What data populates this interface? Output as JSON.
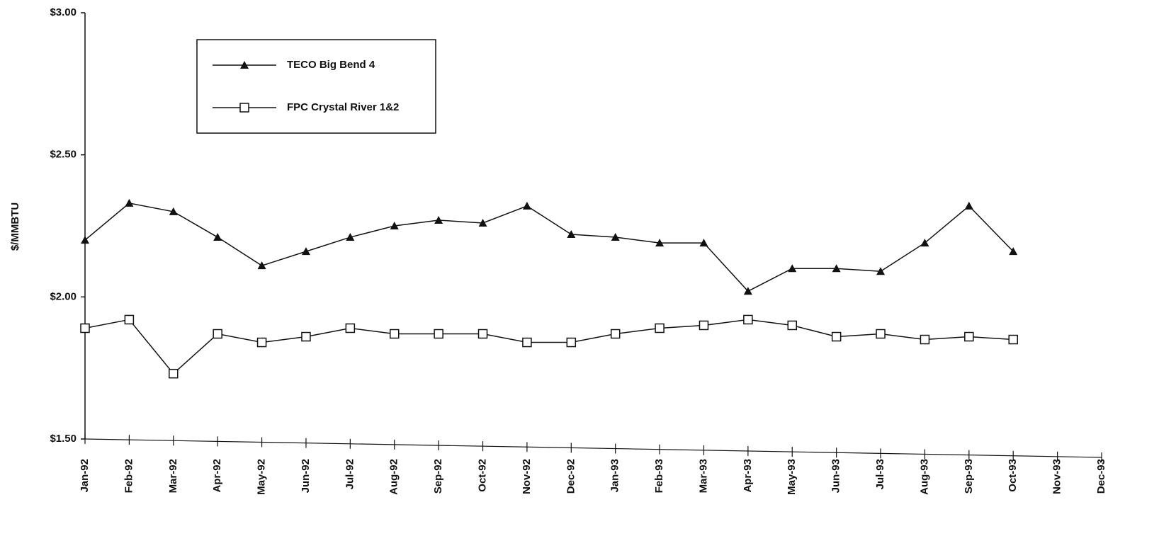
{
  "chart_data": {
    "type": "line",
    "y_label": "$/MMBTU",
    "categories": [
      "Jan-92",
      "Feb-92",
      "Mar-92",
      "Apr-92",
      "May-92",
      "Jun-92",
      "Jul-92",
      "Aug-92",
      "Sep-92",
      "Oct-92",
      "Nov-92",
      "Dec-92",
      "Jan-93",
      "Feb-93",
      "Mar-93",
      "Apr-93",
      "May-93",
      "Jun-93",
      "Jul-93",
      "Aug-93",
      "Sep-93",
      "Oct-93",
      "Nov-93",
      "Dec-93"
    ],
    "series": [
      {
        "name": "TECO  Big Bend 4",
        "color": "#111111",
        "marker": "triangle",
        "values": [
          2.2,
          2.33,
          2.3,
          2.21,
          2.11,
          2.16,
          2.21,
          2.25,
          2.27,
          2.26,
          2.32,
          2.22,
          2.21,
          2.19,
          2.19,
          2.02,
          2.1,
          2.1,
          2.09,
          2.19,
          2.32,
          2.16,
          null,
          null
        ]
      },
      {
        "name": "FPC Crystal River 1&2",
        "color": "#111111",
        "marker": "square",
        "values": [
          1.89,
          1.92,
          1.73,
          1.87,
          1.84,
          1.86,
          1.89,
          1.87,
          1.87,
          1.87,
          1.84,
          1.84,
          1.87,
          1.89,
          1.9,
          1.92,
          1.9,
          1.86,
          1.87,
          1.85,
          1.86,
          1.85,
          null,
          null
        ]
      }
    ],
    "ylim": [
      1.5,
      3.0
    ],
    "yticks": [
      {
        "value": 1.5,
        "label": "$1.50"
      },
      {
        "value": 2.0,
        "label": "$2.00"
      },
      {
        "value": 2.5,
        "label": "$2.50"
      },
      {
        "value": 3.0,
        "label": "$3.00"
      }
    ],
    "grid": false
  }
}
